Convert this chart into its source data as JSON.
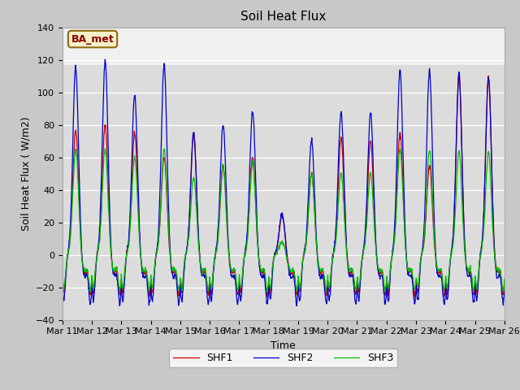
{
  "title": "Soil Heat Flux",
  "ylabel": "Soil Heat Flux ( W/m2)",
  "xlabel": "Time",
  "annotation": "BA_met",
  "legend_labels": [
    "SHF1",
    "SHF2",
    "SHF3"
  ],
  "line_colors": [
    "#cc0000",
    "#0000cc",
    "#00bb00"
  ],
  "ylim": [
    -40,
    140
  ],
  "yticks": [
    -40,
    -20,
    0,
    20,
    40,
    60,
    80,
    100,
    120,
    140
  ],
  "background_color": "#dcdcdc",
  "n_days": 15,
  "start_day": 11,
  "points_per_day": 96,
  "day_peaks_shf1": [
    77,
    80,
    75,
    60,
    75,
    55,
    60,
    25,
    50,
    72,
    70,
    75,
    55,
    110,
    109
  ],
  "day_peaks_shf2": [
    115,
    120,
    98,
    117,
    75,
    80,
    89,
    25,
    71,
    88,
    87,
    114,
    113,
    112,
    109
  ],
  "day_peaks_shf3": [
    65,
    65,
    60,
    65,
    48,
    55,
    57,
    8,
    50,
    50,
    50,
    65,
    65,
    64,
    63
  ],
  "shf1_night_min": -23,
  "shf2_night_min": -28,
  "shf3_night_min": -20,
  "tick_fontsize": 8,
  "label_fontsize": 9,
  "title_fontsize": 11,
  "figsize": [
    6.4,
    4.8
  ],
  "dpi": 100
}
